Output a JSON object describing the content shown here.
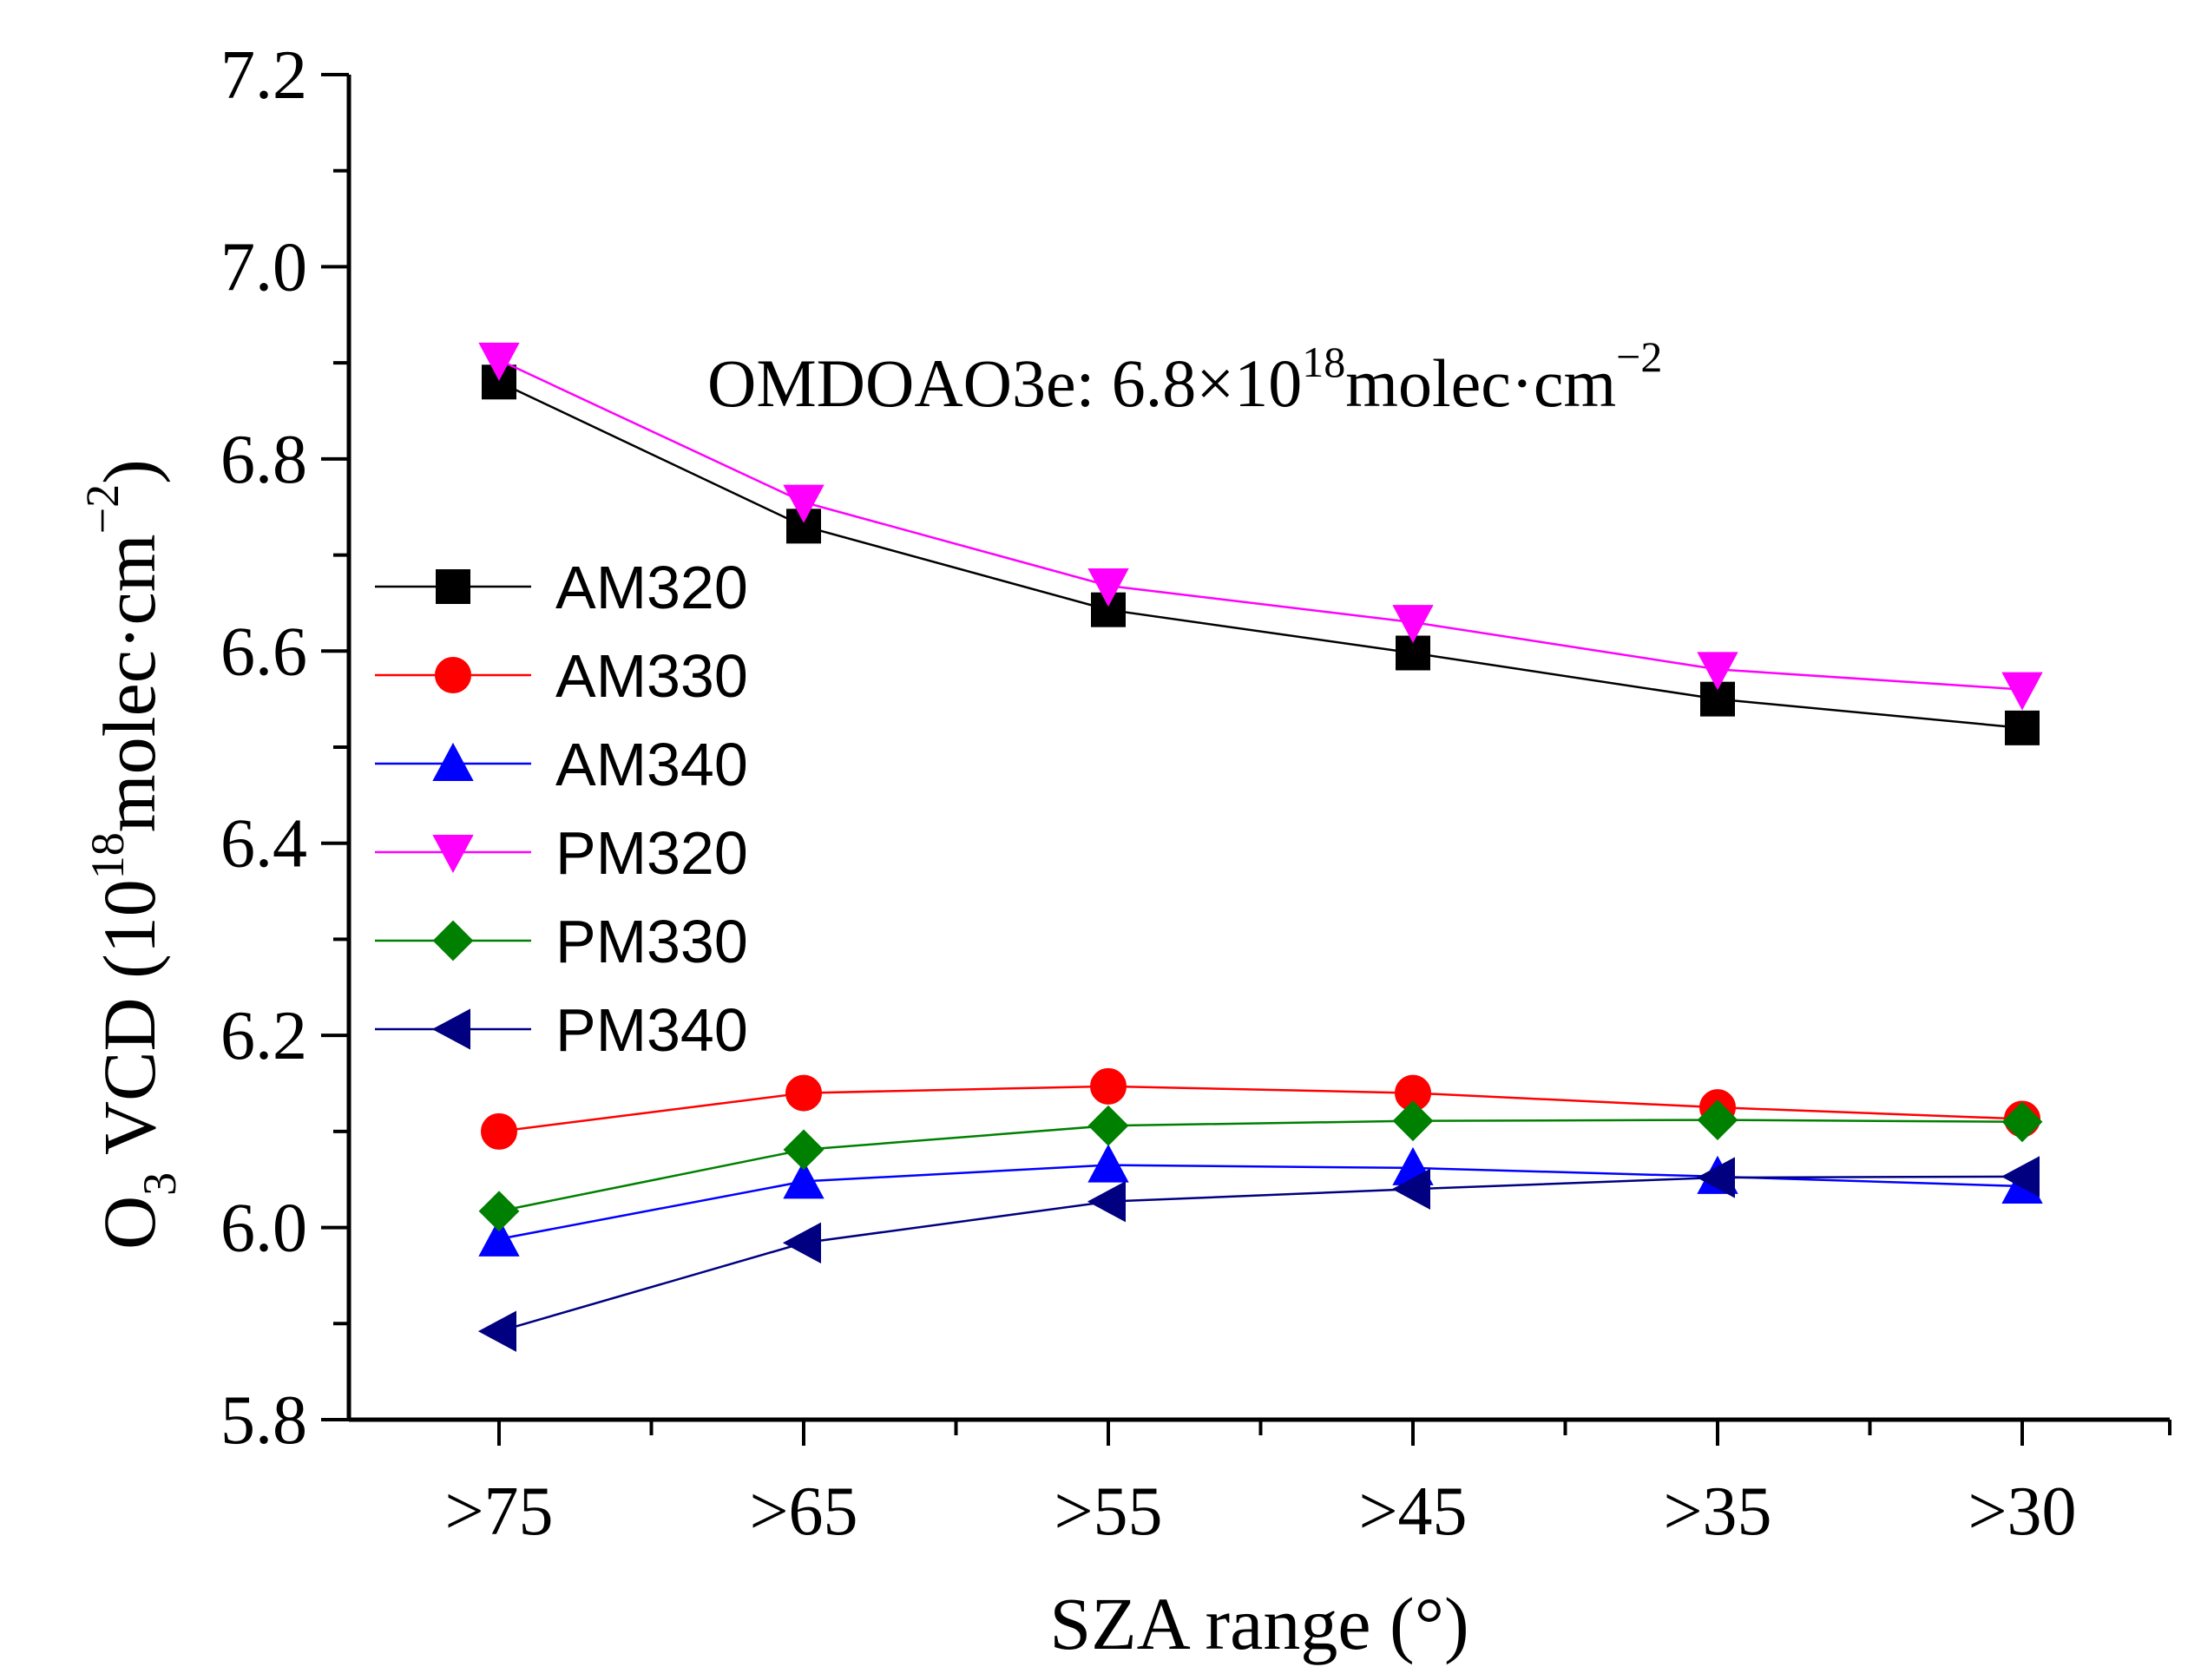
{
  "chart_data": {
    "type": "line",
    "categories": [
      ">75",
      ">65",
      ">55",
      ">45",
      ">35",
      ">30"
    ],
    "ylim": [
      5.8,
      7.2
    ],
    "yticks": [
      "5.8",
      "6.0",
      "6.2",
      "6.4",
      "6.6",
      "6.8",
      "7.0",
      "7.2"
    ],
    "xlabel": "SZA range (°)",
    "ylabel": {
      "species": "O",
      "species_sub": "3",
      "main": " VCD (10",
      "exp": "18",
      "unit": "molec·cm",
      "unit_exp": "−2",
      "close": ")"
    },
    "annotation": {
      "prefix": "OMDOAO3e: 6.8×10",
      "exp": "18",
      "unit": "molec·cm",
      "unit_exp": "−2"
    },
    "series": [
      {
        "name": "AM320",
        "color": "#000000",
        "marker": "square",
        "values": [
          6.88,
          6.73,
          6.643,
          6.598,
          6.55,
          6.52
        ]
      },
      {
        "name": "AM330",
        "color": "#ff0000",
        "marker": "circle",
        "values": [
          6.1,
          6.14,
          6.147,
          6.14,
          6.125,
          6.113
        ]
      },
      {
        "name": "AM340",
        "color": "#0000ff",
        "marker": "triangle-up",
        "values": [
          5.988,
          6.048,
          6.065,
          6.062,
          6.053,
          6.043
        ]
      },
      {
        "name": "PM320",
        "color": "#ff00ff",
        "marker": "triangle-down",
        "values": [
          6.903,
          6.755,
          6.668,
          6.63,
          6.581,
          6.56
        ]
      },
      {
        "name": "PM330",
        "color": "#008000",
        "marker": "diamond",
        "values": [
          6.017,
          6.081,
          6.106,
          6.111,
          6.112,
          6.11
        ]
      },
      {
        "name": "PM340",
        "color": "#000080",
        "marker": "triangle-left",
        "values": [
          5.892,
          5.984,
          6.027,
          6.04,
          6.052,
          6.053
        ]
      }
    ]
  }
}
